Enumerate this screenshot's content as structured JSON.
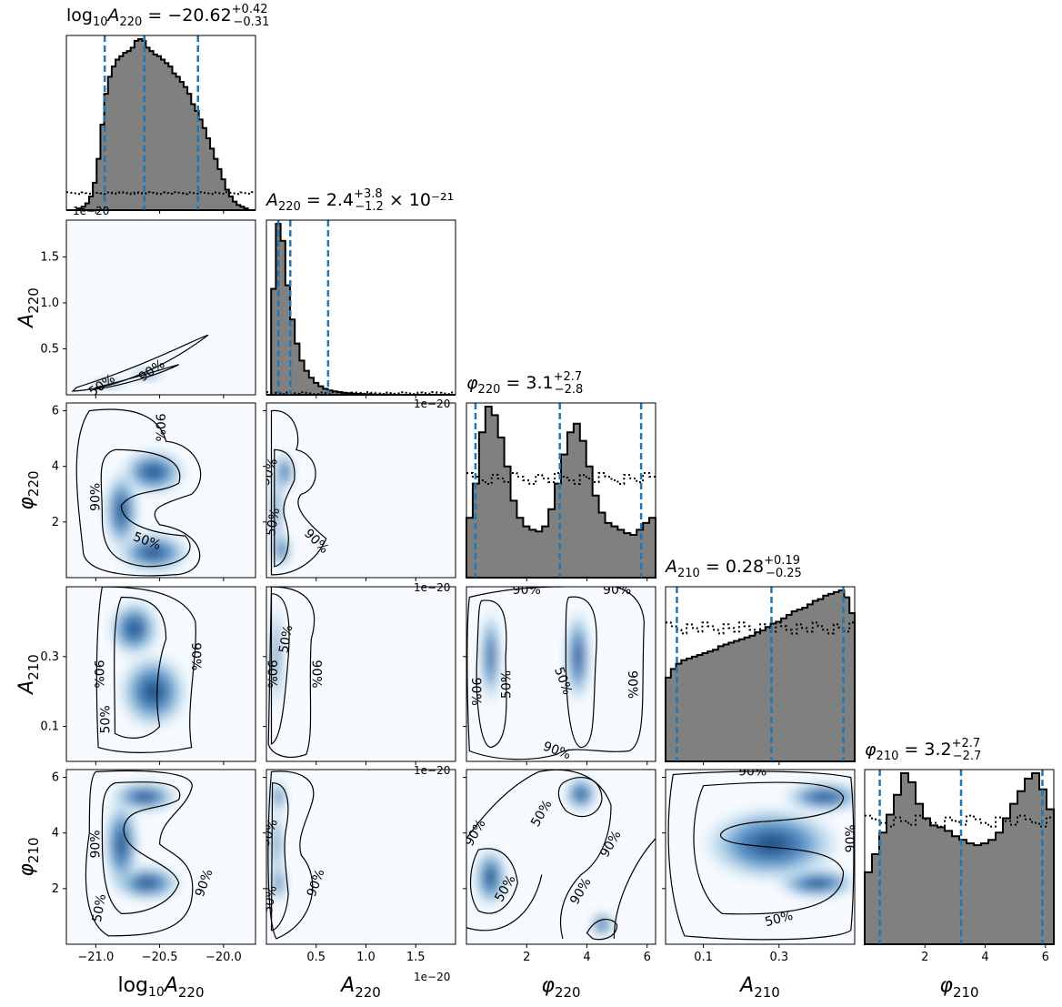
{
  "chart_data": {
    "type": "corner",
    "parameters": [
      {
        "key": "log10A220",
        "label": "log10A220",
        "range": [
          -21.23,
          -19.75
        ],
        "ticks": [
          -21.0,
          -20.5,
          -20.0
        ],
        "tick_labels": [
          "−21.0",
          "−20.5",
          "−20.0"
        ]
      },
      {
        "key": "A220",
        "label": "A220",
        "range": [
          0.0,
          1.9
        ],
        "ticks": [
          0.5,
          1.0,
          1.5
        ],
        "tick_labels": [
          "0.5",
          "1.0",
          "1.5"
        ],
        "offset_text": "1e−20"
      },
      {
        "key": "phi220",
        "label": "φ220",
        "range": [
          0.0,
          6.28
        ],
        "ticks": [
          2,
          4,
          6
        ],
        "tick_labels": [
          "2",
          "4",
          "6"
        ]
      },
      {
        "key": "A210",
        "label": "A210",
        "range": [
          0.0,
          0.5
        ],
        "ticks": [
          0.1,
          0.3
        ],
        "tick_labels": [
          "0.1",
          "0.3"
        ]
      },
      {
        "key": "phi210",
        "label": "φ210",
        "range": [
          0.0,
          6.28
        ],
        "ticks": [
          2,
          4,
          6
        ],
        "tick_labels": [
          "2",
          "4",
          "6"
        ]
      }
    ],
    "titles": [
      {
        "prefix": "log",
        "sub": "10",
        "sym": "A",
        "symsub": "220",
        "eq": " = −20.62",
        "sup": "+0.42",
        "inf": "−0.31",
        "suffix": ""
      },
      {
        "prefix": "",
        "sub": "",
        "sym": "A",
        "symsub": "220",
        "eq": " = 2.4",
        "sup": "+3.8",
        "inf": "−1.2",
        "suffix": " × 10⁻²¹"
      },
      {
        "prefix": "",
        "sub": "",
        "sym": "φ",
        "symsub": "220",
        "eq": " = 3.1",
        "sup": "+2.7",
        "inf": "−2.8",
        "suffix": ""
      },
      {
        "prefix": "",
        "sub": "",
        "sym": "A",
        "symsub": "210",
        "eq": " = 0.28",
        "sup": "+0.19",
        "inf": "−0.25",
        "suffix": ""
      },
      {
        "prefix": "",
        "sub": "",
        "sym": "φ",
        "symsub": "210",
        "eq": " = 3.2",
        "sup": "+2.7",
        "inf": "−2.7",
        "suffix": ""
      }
    ],
    "medians": [
      -20.62,
      0.24,
      3.1,
      0.28,
      3.2
    ],
    "intervals": [
      [
        -20.93,
        -20.2
      ],
      [
        0.12,
        0.62
      ],
      [
        0.3,
        5.8
      ],
      [
        0.03,
        0.47
      ],
      [
        0.5,
        5.9
      ]
    ],
    "histograms": [
      {
        "edges_range": [
          -21.23,
          -19.75
        ],
        "heights": [
          0,
          0,
          0,
          1,
          2,
          4,
          8,
          16,
          30,
          50,
          68,
          78,
          84,
          88,
          90,
          92,
          93,
          95,
          99,
          100,
          99,
          95,
          93,
          91,
          90,
          88,
          86,
          84,
          80,
          78,
          75,
          72,
          68,
          62,
          58,
          53,
          48,
          42,
          36,
          30,
          24,
          18,
          12,
          8,
          5,
          3,
          2,
          1,
          0,
          0
        ],
        "prior": 0.1
      },
      {
        "edges_range": [
          0.0,
          1.9
        ],
        "heights": [
          0,
          62,
          100,
          90,
          64,
          44,
          30,
          20,
          14,
          10,
          7,
          5,
          3.5,
          2.5,
          2,
          1.6,
          1.2,
          0.9,
          0.7,
          0.5,
          0.4,
          0.3,
          0.2,
          0.15,
          0.1,
          0.1,
          0.05,
          0.05,
          0.05,
          0,
          0,
          0,
          0,
          0,
          0,
          0,
          0,
          0,
          0,
          0
        ],
        "prior": 0.01
      },
      {
        "edges_range": [
          0.0,
          6.28
        ],
        "heights": [
          35,
          55,
          85,
          100,
          95,
          82,
          65,
          45,
          35,
          30,
          28,
          27,
          30,
          40,
          55,
          72,
          85,
          90,
          80,
          65,
          48,
          38,
          32,
          30,
          28,
          26,
          25,
          28,
          32,
          35
        ],
        "prior": 0.58
      },
      {
        "edges_range": [
          0.0,
          0.5
        ],
        "heights": [
          48,
          53,
          56,
          58,
          59,
          60,
          61,
          62,
          63,
          64,
          66,
          67,
          68,
          69,
          70,
          71,
          72,
          74,
          75,
          77,
          79,
          80,
          82,
          84,
          86,
          87,
          88,
          90,
          92,
          93,
          95,
          96,
          97,
          98,
          94,
          85
        ],
        "prior": 0.78
      },
      {
        "edges_range": [
          0.0,
          6.28
        ],
        "heights": [
          40,
          50,
          62,
          72,
          83,
          95,
          90,
          78,
          70,
          66,
          65,
          63,
          60,
          58,
          56,
          55,
          56,
          58,
          62,
          70,
          78,
          85,
          92,
          95,
          86,
          75
        ],
        "prior": 0.72
      }
    ],
    "contour_levels": [
      "50%",
      "90%"
    ]
  }
}
